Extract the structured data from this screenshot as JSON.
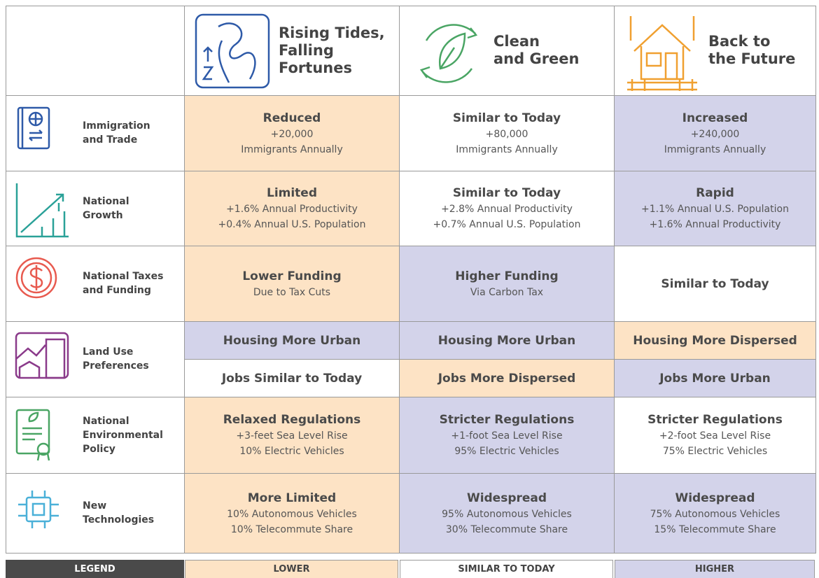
{
  "header": {
    "scenarios": [
      {
        "title_lines": [
          "Rising Tides,",
          "Falling",
          "Fortunes"
        ]
      },
      {
        "title_lines": [
          "Clean",
          "and Green"
        ]
      },
      {
        "title_lines": [
          "Back to",
          "the Future"
        ]
      }
    ]
  },
  "rows": [
    {
      "label_lines": [
        "Immigration",
        "and Trade"
      ],
      "cells": [
        {
          "title": "Reduced",
          "details": [
            "+20,000",
            "Immigrants Annually"
          ],
          "tone": "lower"
        },
        {
          "title": "Similar to Today",
          "details": [
            "+80,000",
            "Immigrants Annually"
          ],
          "tone": "similar"
        },
        {
          "title": "Increased",
          "details": [
            "+240,000",
            "Immigrants Annually"
          ],
          "tone": "higher"
        }
      ]
    },
    {
      "label_lines": [
        "National",
        "Growth"
      ],
      "cells": [
        {
          "title": "Limited",
          "details": [
            "+1.6% Annual Productivity",
            "+0.4% Annual U.S. Population"
          ],
          "tone": "lower"
        },
        {
          "title": "Similar to Today",
          "details": [
            "+2.8% Annual Productivity",
            "+0.7% Annual U.S. Population"
          ],
          "tone": "similar"
        },
        {
          "title": "Rapid",
          "details": [
            "+1.1% Annual U.S. Population",
            "+1.6% Annual Productivity"
          ],
          "tone": "higher"
        }
      ]
    },
    {
      "label_lines": [
        "National Taxes",
        "and Funding"
      ],
      "cells": [
        {
          "title": "Lower Funding",
          "details": [
            "Due to Tax Cuts"
          ],
          "tone": "lower"
        },
        {
          "title": "Higher Funding",
          "details": [
            "Via Carbon Tax"
          ],
          "tone": "higher"
        },
        {
          "title": "Similar to Today",
          "details": [],
          "tone": "similar"
        }
      ]
    },
    {
      "label_lines": [
        "Land Use",
        "Preferences"
      ],
      "subrows": [
        [
          {
            "title": "Housing More Urban",
            "details": [],
            "tone": "higher"
          },
          {
            "title": "Housing More Urban",
            "details": [],
            "tone": "higher"
          },
          {
            "title": "Housing More Dispersed",
            "details": [],
            "tone": "lower"
          }
        ],
        [
          {
            "title": "Jobs Similar to Today",
            "details": [],
            "tone": "similar"
          },
          {
            "title": "Jobs More Dispersed",
            "details": [],
            "tone": "lower"
          },
          {
            "title": "Jobs More Urban",
            "details": [],
            "tone": "higher"
          }
        ]
      ]
    },
    {
      "label_lines": [
        "National",
        "Environmental",
        "Policy"
      ],
      "cells": [
        {
          "title": "Relaxed Regulations",
          "details": [
            "+3-feet Sea Level Rise",
            "10% Electric Vehicles"
          ],
          "tone": "lower"
        },
        {
          "title": "Stricter Regulations",
          "details": [
            "+1-foot Sea Level Rise",
            "95% Electric Vehicles"
          ],
          "tone": "higher"
        },
        {
          "title": "Stricter Regulations",
          "details": [
            "+2-foot Sea Level Rise",
            "75% Electric Vehicles"
          ],
          "tone": "similar"
        }
      ]
    },
    {
      "label_lines": [
        "New",
        "Technologies"
      ],
      "cells": [
        {
          "title": "More Limited",
          "details": [
            "10% Autonomous Vehicles",
            "10% Telecommute Share"
          ],
          "tone": "lower"
        },
        {
          "title": "Widespread",
          "details": [
            "95% Autonomous Vehicles",
            "30% Telecommute Share"
          ],
          "tone": "higher"
        },
        {
          "title": "Widespread",
          "details": [
            "75% Autonomous Vehicles",
            "15% Telecommute Share"
          ],
          "tone": "higher"
        }
      ]
    }
  ],
  "legend": {
    "title": "LEGEND",
    "items": [
      {
        "label": "LOWER",
        "tone": "lower"
      },
      {
        "label": "SIMILAR TO TODAY",
        "tone": "similar"
      },
      {
        "label": "HIGHER",
        "tone": "higher"
      }
    ]
  }
}
